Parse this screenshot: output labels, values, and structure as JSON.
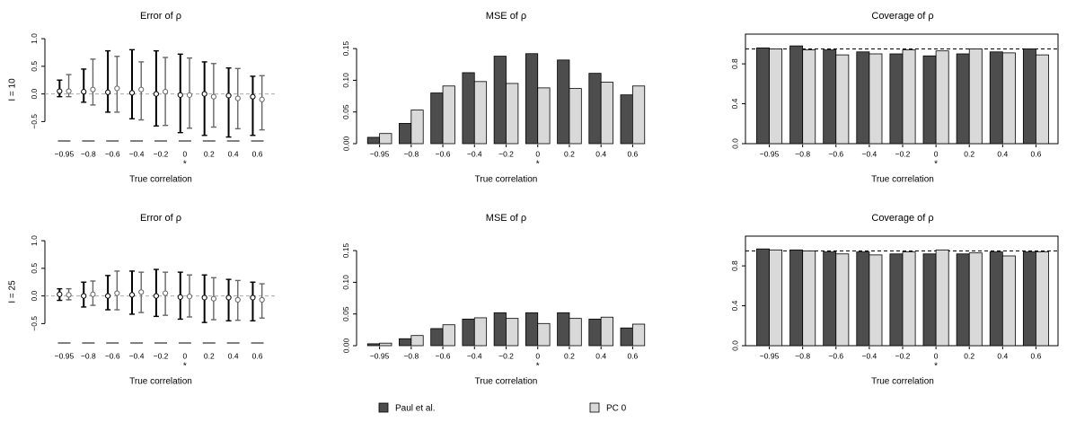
{
  "chart_data": [
    {
      "type": "errorbar",
      "title": "Error of ρ",
      "row_label": "I = 10",
      "xlabel": "True correlation",
      "categories": [
        "−0.95",
        "−0.8",
        "−0.6",
        "−0.4",
        "−0.2",
        "0",
        "0.2",
        "0.4",
        "0.6"
      ],
      "annotations": [
        {
          "text": "*",
          "category": 5
        }
      ],
      "ylim": [
        -0.9,
        1.05
      ],
      "yticks": [
        {
          "value": -0.5,
          "label": "−0.5"
        },
        {
          "value": 0,
          "label": "0.0"
        },
        {
          "value": 0.5,
          "label": "0.5"
        },
        {
          "value": 1,
          "label": "1.0"
        }
      ],
      "reference_line": 0,
      "reference_color": "#aaaaaa",
      "series": [
        {
          "name": "Paul et al.",
          "color": "#000000",
          "values": [
            0.05,
            0.04,
            0.03,
            0.02,
            0.0,
            -0.02,
            0.0,
            -0.03,
            -0.05
          ],
          "lower": [
            -0.05,
            -0.15,
            -0.33,
            -0.45,
            -0.58,
            -0.7,
            -0.75,
            -0.78,
            -0.75
          ],
          "upper": [
            0.25,
            0.45,
            0.78,
            0.8,
            0.78,
            0.72,
            0.58,
            0.47,
            0.32
          ]
        },
        {
          "name": "PC 0",
          "color": "#666666",
          "values": [
            0.05,
            0.08,
            0.1,
            0.08,
            0.04,
            -0.02,
            -0.05,
            -0.08,
            -0.1
          ],
          "lower": [
            -0.05,
            -0.2,
            -0.33,
            -0.47,
            -0.57,
            -0.62,
            -0.6,
            -0.63,
            -0.65
          ],
          "upper": [
            0.35,
            0.63,
            0.68,
            0.58,
            0.66,
            0.65,
            0.55,
            0.46,
            0.33
          ]
        }
      ]
    },
    {
      "type": "bar",
      "title": "MSE of ρ",
      "xlabel": "True correlation",
      "categories": [
        "−0.95",
        "−0.8",
        "−0.6",
        "−0.4",
        "−0.2",
        "0",
        "0.2",
        "0.4",
        "0.6"
      ],
      "annotations": [
        {
          "text": "*",
          "category": 5
        }
      ],
      "ylim": [
        0,
        0.17
      ],
      "yticks": [
        {
          "value": 0,
          "label": "0.00"
        },
        {
          "value": 0.05,
          "label": "0.05"
        },
        {
          "value": 0.1,
          "label": "0.10"
        },
        {
          "value": 0.15,
          "label": "0.15"
        }
      ],
      "series": [
        {
          "name": "Paul et al.",
          "color": "#4d4d4d",
          "values": [
            0.01,
            0.032,
            0.08,
            0.112,
            0.138,
            0.142,
            0.132,
            0.111,
            0.077
          ]
        },
        {
          "name": "PC 0",
          "color": "#d9d9d9",
          "values": [
            0.016,
            0.053,
            0.091,
            0.098,
            0.095,
            0.088,
            0.087,
            0.097,
            0.091
          ]
        }
      ]
    },
    {
      "type": "bar",
      "title": "Coverage of ρ",
      "xlabel": "True correlation",
      "categories": [
        "−0.95",
        "−0.8",
        "−0.6",
        "−0.4",
        "−0.2",
        "0",
        "0.2",
        "0.4",
        "0.6"
      ],
      "annotations": [
        {
          "text": "*",
          "category": 5
        }
      ],
      "ylim": [
        0,
        1.08
      ],
      "yticks": [
        {
          "value": 0,
          "label": "0.0"
        },
        {
          "value": 0.4,
          "label": "0.4"
        },
        {
          "value": 0.8,
          "label": "0.8"
        }
      ],
      "reference_line": 0.95,
      "reference_color": "#000000",
      "box": true,
      "series": [
        {
          "name": "Paul et al.",
          "color": "#4d4d4d",
          "values": [
            0.96,
            0.98,
            0.94,
            0.92,
            0.9,
            0.88,
            0.9,
            0.92,
            0.95
          ]
        },
        {
          "name": "PC 0",
          "color": "#d9d9d9",
          "values": [
            0.95,
            0.94,
            0.89,
            0.9,
            0.94,
            0.93,
            0.95,
            0.91,
            0.89
          ]
        }
      ]
    },
    {
      "type": "errorbar",
      "title": "Error of ρ",
      "row_label": "I = 25",
      "xlabel": "True correlation",
      "categories": [
        "−0.95",
        "−0.8",
        "−0.6",
        "−0.4",
        "−0.2",
        "0",
        "0.2",
        "0.4",
        "0.6"
      ],
      "annotations": [
        {
          "text": "*",
          "category": 5
        }
      ],
      "ylim": [
        -0.9,
        1.05
      ],
      "yticks": [
        {
          "value": -0.5,
          "label": "−0.5"
        },
        {
          "value": 0,
          "label": "0.0"
        },
        {
          "value": 0.5,
          "label": "0.5"
        },
        {
          "value": 1,
          "label": "1.0"
        }
      ],
      "reference_line": 0,
      "reference_color": "#aaaaaa",
      "series": [
        {
          "name": "Paul et al.",
          "color": "#000000",
          "values": [
            0.03,
            0.0,
            0.0,
            0.02,
            0.0,
            -0.02,
            -0.03,
            -0.03,
            -0.03
          ],
          "lower": [
            -0.08,
            -0.2,
            -0.25,
            -0.33,
            -0.37,
            -0.42,
            -0.48,
            -0.45,
            -0.45
          ],
          "upper": [
            0.13,
            0.25,
            0.37,
            0.45,
            0.48,
            0.43,
            0.38,
            0.3,
            0.25
          ]
        },
        {
          "name": "PC 0",
          "color": "#666666",
          "values": [
            0.02,
            0.03,
            0.05,
            0.07,
            0.05,
            -0.01,
            -0.05,
            -0.07,
            -0.07
          ],
          "lower": [
            -0.07,
            -0.17,
            -0.25,
            -0.3,
            -0.35,
            -0.38,
            -0.43,
            -0.44,
            -0.4
          ],
          "upper": [
            0.13,
            0.27,
            0.45,
            0.43,
            0.43,
            0.38,
            0.33,
            0.28,
            0.22
          ]
        }
      ]
    },
    {
      "type": "bar",
      "title": "MSE of ρ",
      "xlabel": "True correlation",
      "categories": [
        "−0.95",
        "−0.8",
        "−0.6",
        "−0.4",
        "−0.2",
        "0",
        "0.2",
        "0.4",
        "0.6"
      ],
      "annotations": [
        {
          "text": "*",
          "category": 5
        }
      ],
      "ylim": [
        0,
        0.17
      ],
      "yticks": [
        {
          "value": 0,
          "label": "0.00"
        },
        {
          "value": 0.05,
          "label": "0.05"
        },
        {
          "value": 0.1,
          "label": "0.10"
        },
        {
          "value": 0.15,
          "label": "0.15"
        }
      ],
      "series": [
        {
          "name": "Paul et al.",
          "color": "#4d4d4d",
          "values": [
            0.003,
            0.011,
            0.027,
            0.042,
            0.052,
            0.052,
            0.052,
            0.042,
            0.028
          ]
        },
        {
          "name": "PC 0",
          "color": "#d9d9d9",
          "values": [
            0.004,
            0.016,
            0.033,
            0.044,
            0.043,
            0.035,
            0.043,
            0.045,
            0.034
          ]
        }
      ]
    },
    {
      "type": "bar",
      "title": "Coverage of ρ",
      "xlabel": "True correlation",
      "categories": [
        "−0.95",
        "−0.8",
        "−0.6",
        "−0.4",
        "−0.2",
        "0",
        "0.2",
        "0.4",
        "0.6"
      ],
      "annotations": [
        {
          "text": "*",
          "category": 5
        }
      ],
      "ylim": [
        0,
        1.08
      ],
      "yticks": [
        {
          "value": 0,
          "label": "0.0"
        },
        {
          "value": 0.4,
          "label": "0.4"
        },
        {
          "value": 0.8,
          "label": "0.8"
        }
      ],
      "reference_line": 0.95,
      "reference_color": "#000000",
      "box": true,
      "series": [
        {
          "name": "Paul et al.",
          "color": "#4d4d4d",
          "values": [
            0.97,
            0.96,
            0.94,
            0.94,
            0.92,
            0.92,
            0.92,
            0.94,
            0.94
          ]
        },
        {
          "name": "PC 0",
          "color": "#d9d9d9",
          "values": [
            0.96,
            0.95,
            0.92,
            0.91,
            0.94,
            0.96,
            0.93,
            0.9,
            0.94
          ]
        }
      ]
    }
  ]
}
